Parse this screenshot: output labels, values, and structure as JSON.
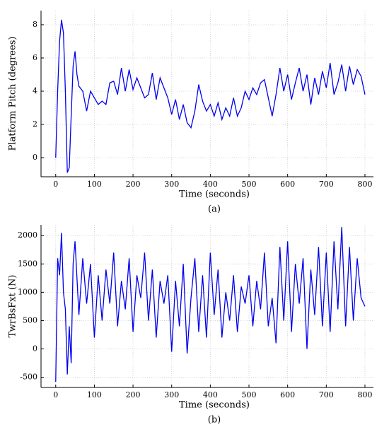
{
  "chart_data": [
    {
      "type": "line",
      "xlabel": "Time (seconds)",
      "ylabel": "Platform Pitch (degrees)",
      "caption": "(a)",
      "xlim": [
        -38,
        822
      ],
      "ylim": [
        -1.15,
        8.85
      ],
      "xticks": [
        0,
        100,
        200,
        300,
        400,
        500,
        600,
        700,
        800
      ],
      "yticks": [
        0,
        2,
        4,
        6,
        8
      ],
      "grid": true,
      "x": [
        0,
        5,
        10,
        15,
        20,
        25,
        30,
        35,
        40,
        45,
        50,
        55,
        60,
        70,
        80,
        90,
        100,
        110,
        120,
        130,
        140,
        150,
        160,
        170,
        180,
        190,
        200,
        210,
        220,
        230,
        240,
        250,
        260,
        270,
        280,
        290,
        300,
        310,
        320,
        330,
        340,
        350,
        360,
        370,
        380,
        390,
        400,
        410,
        420,
        430,
        440,
        450,
        460,
        470,
        480,
        490,
        500,
        510,
        520,
        530,
        540,
        550,
        560,
        570,
        580,
        590,
        600,
        610,
        620,
        630,
        640,
        650,
        660,
        670,
        680,
        690,
        700,
        710,
        720,
        730,
        740,
        750,
        760,
        770,
        780,
        790,
        800
      ],
      "series": [
        {
          "name": "Platform Pitch",
          "color": "#0000ee",
          "values": [
            0,
            4,
            7,
            8.3,
            7.5,
            4,
            -0.9,
            -0.6,
            2.5,
            5.5,
            6.4,
            5,
            4.3,
            4.0,
            2.8,
            4.0,
            3.6,
            3.2,
            3.4,
            3.2,
            4.5,
            4.6,
            3.8,
            5.4,
            4.0,
            5.3,
            4.1,
            4.8,
            4.2,
            3.6,
            3.8,
            5.1,
            3.5,
            4.8,
            4.2,
            3.6,
            2.6,
            3.5,
            2.3,
            3.2,
            2.1,
            1.8,
            2.8,
            4.4,
            3.4,
            2.8,
            3.2,
            2.5,
            3.3,
            2.3,
            3.0,
            2.5,
            3.6,
            2.5,
            3.0,
            4.0,
            3.5,
            4.2,
            3.8,
            4.5,
            4.7,
            3.6,
            2.5,
            3.8,
            5.4,
            4.0,
            5.0,
            3.5,
            4.5,
            5.4,
            4.0,
            5.0,
            3.2,
            4.8,
            3.8,
            5.2,
            4.2,
            5.7,
            3.8,
            4.5,
            5.6,
            4.0,
            5.5,
            4.4,
            5.3,
            4.9,
            3.8
          ]
        }
      ]
    },
    {
      "type": "line",
      "xlabel": "Time (seconds)",
      "ylabel": "TwrBsFxt (N)",
      "caption": "(b)",
      "xlim": [
        -38,
        822
      ],
      "ylim": [
        -680,
        2190
      ],
      "xticks": [
        0,
        100,
        200,
        300,
        400,
        500,
        600,
        700,
        800
      ],
      "yticks": [
        -500,
        0,
        500,
        1000,
        1500,
        2000
      ],
      "grid": true,
      "x": [
        0,
        5,
        10,
        15,
        20,
        25,
        30,
        35,
        40,
        45,
        50,
        60,
        70,
        80,
        90,
        100,
        110,
        120,
        130,
        140,
        150,
        160,
        170,
        180,
        190,
        200,
        210,
        220,
        230,
        240,
        250,
        260,
        270,
        280,
        290,
        300,
        310,
        320,
        330,
        340,
        350,
        360,
        370,
        380,
        390,
        400,
        410,
        420,
        430,
        440,
        450,
        460,
        470,
        480,
        490,
        500,
        510,
        520,
        530,
        540,
        550,
        560,
        570,
        580,
        590,
        600,
        610,
        620,
        630,
        640,
        650,
        660,
        670,
        680,
        690,
        700,
        710,
        720,
        730,
        740,
        750,
        760,
        770,
        780,
        790,
        800
      ],
      "series": [
        {
          "name": "TwrBsFxt",
          "color": "#0000ee",
          "values": [
            -580,
            1600,
            1300,
            2050,
            1000,
            700,
            -450,
            400,
            -250,
            1500,
            1900,
            600,
            1600,
            800,
            1500,
            200,
            1300,
            500,
            1400,
            800,
            1700,
            400,
            1200,
            700,
            1600,
            300,
            1300,
            900,
            1700,
            500,
            1400,
            200,
            1200,
            800,
            1300,
            -50,
            1200,
            400,
            1500,
            -80,
            900,
            1600,
            300,
            1300,
            200,
            1700,
            600,
            1400,
            200,
            1000,
            500,
            1300,
            300,
            1100,
            800,
            1300,
            400,
            1200,
            700,
            1700,
            400,
            900,
            100,
            1800,
            500,
            1900,
            300,
            1500,
            800,
            1600,
            0,
            1400,
            600,
            1800,
            400,
            1700,
            300,
            1900,
            700,
            2150,
            400,
            1800,
            500,
            1600,
            900,
            750
          ]
        }
      ]
    }
  ]
}
